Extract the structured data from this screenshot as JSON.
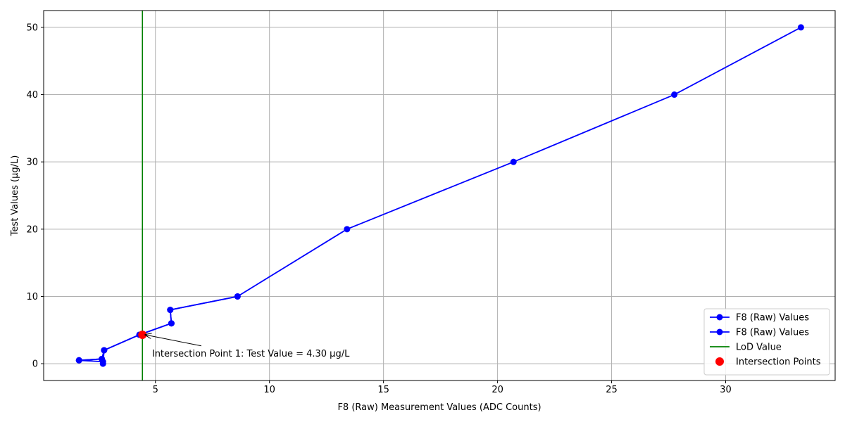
{
  "chart_data": {
    "type": "line",
    "title": "",
    "xlabel": "F8 (Raw) Measurement Values (ADC Counts)",
    "ylabel": "Test Values (µg/L)",
    "xlim": [
      0.1,
      34.8
    ],
    "ylim": [
      -2.5,
      52.5
    ],
    "xticks": [
      5,
      10,
      15,
      20,
      25,
      30
    ],
    "yticks": [
      0,
      10,
      20,
      30,
      40,
      50
    ],
    "grid": true,
    "legend_position": "bottom-right",
    "series": [
      {
        "name": "F8 (Raw) Values",
        "color": "#0000ff",
        "marker": "circle",
        "x": [
          1.65,
          2.65,
          2.7,
          2.75,
          4.3,
          5.7,
          5.65,
          8.6,
          13.4,
          20.7,
          27.75,
          33.3
        ],
        "y": [
          0.5,
          0.7,
          0.0,
          2.0,
          4.3,
          6.0,
          8.0,
          10.0,
          20.0,
          30.0,
          40.0,
          50.0
        ]
      },
      {
        "name": "F8 (Raw) Values",
        "color": "#0000ff",
        "marker": "circle",
        "x": [
          2.7,
          1.65,
          2.65,
          2.75,
          4.3,
          5.7,
          5.65,
          8.6
        ],
        "y": [
          0.3,
          0.5,
          0.7,
          2.0,
          4.3,
          6.0,
          8.0,
          10.0
        ]
      },
      {
        "name": "LoD Value",
        "color": "#008000",
        "type": "vline",
        "x": 4.43
      },
      {
        "name": "Intersection Points",
        "color": "#ff0000",
        "type": "points",
        "x": [
          4.43
        ],
        "y": [
          4.3
        ]
      }
    ],
    "annotations": [
      {
        "text": "Intersection Point 1: Test Value = 4.30 µg/L",
        "point": [
          4.43,
          4.3
        ],
        "text_at": [
          4.85,
          1.6
        ]
      }
    ]
  }
}
